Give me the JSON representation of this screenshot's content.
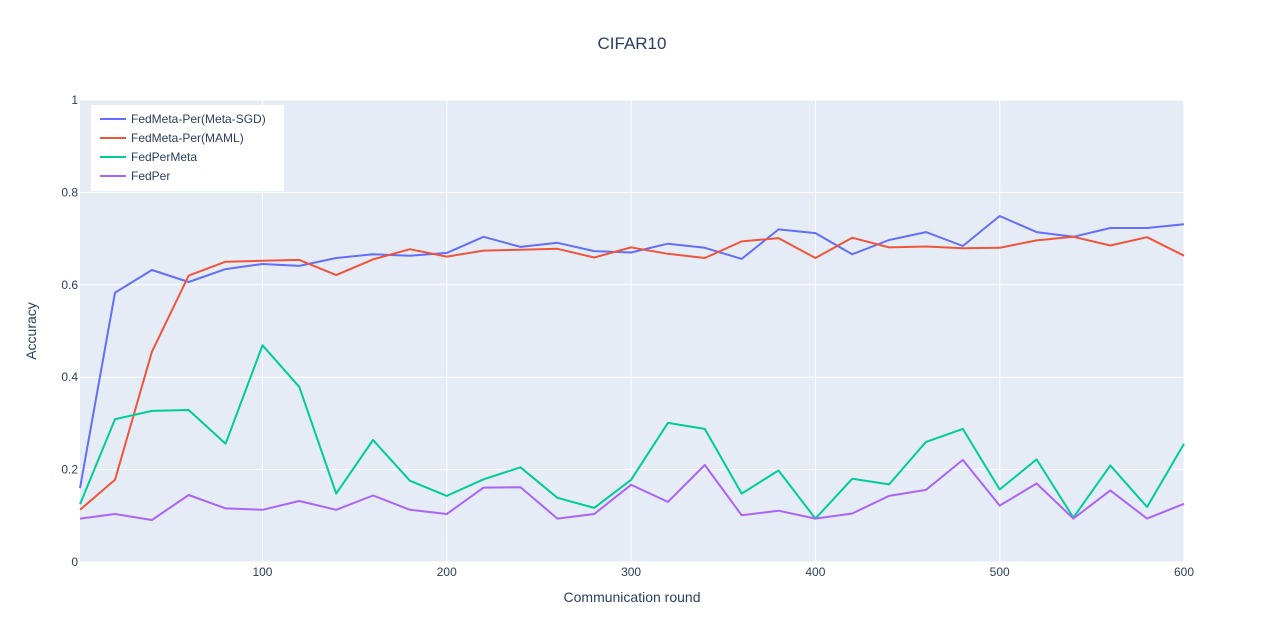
{
  "chart_data": {
    "type": "line",
    "title": "CIFAR10",
    "xlabel": "Communication round",
    "ylabel": "Accuracy",
    "xlim": [
      1,
      600
    ],
    "ylim": [
      0,
      1
    ],
    "x_ticks": [
      100,
      200,
      300,
      400,
      500,
      600
    ],
    "y_ticks": [
      0,
      0.2,
      0.4,
      0.6,
      0.8,
      1
    ],
    "x_tick_labels": [
      "100",
      "200",
      "300",
      "400",
      "500",
      "600"
    ],
    "y_tick_labels": [
      "0",
      "0.2",
      "0.4",
      "0.6",
      "0.8",
      "1"
    ],
    "grid": true,
    "legend_position": "top-left",
    "background": "#e5ecf6",
    "x": [
      1,
      20,
      40,
      60,
      80,
      100,
      120,
      140,
      160,
      180,
      200,
      220,
      240,
      260,
      280,
      300,
      320,
      340,
      360,
      380,
      400,
      420,
      440,
      460,
      480,
      500,
      520,
      540,
      560,
      580,
      600
    ],
    "series": [
      {
        "name": "FedMeta-Per(Meta-SGD)",
        "color": "#636efa",
        "values": [
          0.16,
          0.583,
          0.632,
          0.606,
          0.634,
          0.645,
          0.641,
          0.658,
          0.666,
          0.663,
          0.669,
          0.704,
          0.682,
          0.691,
          0.673,
          0.67,
          0.689,
          0.68,
          0.656,
          0.72,
          0.712,
          0.666,
          0.697,
          0.714,
          0.684,
          0.749,
          0.714,
          0.704,
          0.723,
          0.723,
          0.731
        ]
      },
      {
        "name": "FedMeta-Per(MAML)",
        "color": "#ef553b",
        "values": [
          0.113,
          0.178,
          0.455,
          0.62,
          0.65,
          0.652,
          0.654,
          0.621,
          0.655,
          0.677,
          0.661,
          0.674,
          0.676,
          0.678,
          0.659,
          0.681,
          0.667,
          0.658,
          0.694,
          0.701,
          0.658,
          0.702,
          0.681,
          0.683,
          0.679,
          0.68,
          0.696,
          0.704,
          0.685,
          0.703,
          0.663
        ]
      },
      {
        "name": "FedPerMeta",
        "color": "#00cc96",
        "values": [
          0.125,
          0.309,
          0.327,
          0.329,
          0.256,
          0.469,
          0.379,
          0.148,
          0.264,
          0.176,
          0.143,
          0.179,
          0.205,
          0.139,
          0.117,
          0.178,
          0.301,
          0.288,
          0.148,
          0.198,
          0.094,
          0.18,
          0.168,
          0.26,
          0.288,
          0.157,
          0.222,
          0.096,
          0.209,
          0.119,
          0.256
        ]
      },
      {
        "name": "FedPer",
        "color": "#ab63fa",
        "values": [
          0.094,
          0.104,
          0.091,
          0.145,
          0.116,
          0.113,
          0.132,
          0.113,
          0.144,
          0.113,
          0.104,
          0.161,
          0.162,
          0.094,
          0.104,
          0.167,
          0.13,
          0.21,
          0.101,
          0.111,
          0.094,
          0.105,
          0.143,
          0.156,
          0.221,
          0.122,
          0.17,
          0.094,
          0.155,
          0.094,
          0.126
        ]
      }
    ]
  }
}
